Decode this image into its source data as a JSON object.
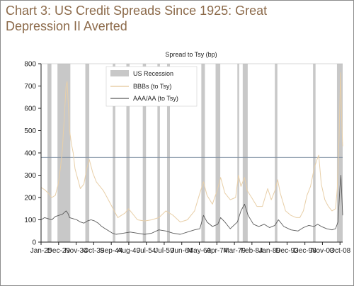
{
  "chart_data": {
    "type": "line",
    "title": "Chart 3: US Credit Spreads Since 1925: Great Depression II Averted",
    "ylabel": "Spread to Tsy (bp)",
    "xlabel": "",
    "ylim": [
      0,
      800
    ],
    "yticks": [
      0,
      100,
      200,
      300,
      400,
      500,
      600,
      700,
      800
    ],
    "xlim": [
      1925.0,
      2009.5
    ],
    "xtick_labels": [
      "Jan-25",
      "Dec-29",
      "Nov-34",
      "Oct-39",
      "Sep-44",
      "Aug-49",
      "Jul-54",
      "Jul-59",
      "Jun-64",
      "May-69",
      "Apr-74",
      "Mar-79",
      "Feb-84",
      "Jan-89",
      "Dec-93",
      "Dec-98",
      "Nov-03",
      "Oct-08"
    ],
    "xtick_values": [
      1925.0,
      1929.92,
      1934.83,
      1939.75,
      1944.67,
      1949.58,
      1954.5,
      1959.5,
      1964.42,
      1969.33,
      1974.25,
      1979.17,
      1984.08,
      1989.0,
      1993.92,
      1998.92,
      2003.83,
      2008.75
    ],
    "reference_line": 380,
    "grid": false,
    "legend_position": "top-left",
    "recessions": [
      [
        1926.8,
        1927.9
      ],
      [
        1929.6,
        1933.2
      ],
      [
        1937.4,
        1938.5
      ],
      [
        1945.1,
        1945.8
      ],
      [
        1948.9,
        1949.8
      ],
      [
        1953.5,
        1954.4
      ],
      [
        1957.6,
        1958.3
      ],
      [
        1960.3,
        1961.1
      ],
      [
        1969.9,
        1970.9
      ],
      [
        1973.9,
        1975.2
      ],
      [
        1980.0,
        1980.5
      ],
      [
        1981.5,
        1982.9
      ],
      [
        1990.5,
        1991.2
      ],
      [
        2001.2,
        2001.9
      ],
      [
        2007.9,
        2009.5
      ]
    ],
    "series": [
      {
        "name": "US Recession",
        "color": "#c8c8c8"
      },
      {
        "name": "BBBs (to Tsy)",
        "color": "#e8cfa8",
        "x": [
          1925.0,
          1926.0,
          1927.0,
          1928.0,
          1929.0,
          1929.8,
          1930.5,
          1931.0,
          1931.5,
          1932.0,
          1932.3,
          1932.6,
          1933.0,
          1933.5,
          1934.0,
          1934.5,
          1935.0,
          1936.0,
          1937.0,
          1937.8,
          1938.5,
          1939.5,
          1940.5,
          1941.5,
          1942.5,
          1943.5,
          1944.5,
          1945.5,
          1946.5,
          1947.5,
          1948.5,
          1949.5,
          1950.5,
          1952.0,
          1954.0,
          1956.0,
          1958.0,
          1960.0,
          1962.0,
          1964.0,
          1966.0,
          1968.0,
          1969.5,
          1970.5,
          1971.5,
          1973.0,
          1974.5,
          1975.3,
          1976.5,
          1978.0,
          1979.5,
          1980.3,
          1981.0,
          1982.0,
          1982.8,
          1984.0,
          1985.5,
          1987.0,
          1988.5,
          1989.5,
          1990.5,
          1991.3,
          1992.0,
          1993.5,
          1995.0,
          1996.5,
          1997.5,
          1998.5,
          1999.5,
          2000.5,
          2001.5,
          2002.3,
          2002.8,
          2003.5,
          2004.5,
          2005.5,
          2006.5,
          2007.5,
          2008.0,
          2008.5,
          2008.9,
          2009.2,
          2009.5
        ],
        "values": [
          245,
          235,
          220,
          200,
          210,
          260,
          340,
          420,
          560,
          700,
          720,
          630,
          500,
          440,
          400,
          330,
          300,
          240,
          260,
          330,
          370,
          310,
          270,
          250,
          230,
          200,
          170,
          140,
          110,
          120,
          130,
          150,
          130,
          100,
          95,
          100,
          110,
          140,
          120,
          90,
          100,
          140,
          220,
          270,
          210,
          170,
          240,
          290,
          220,
          190,
          200,
          300,
          250,
          290,
          230,
          200,
          160,
          160,
          240,
          190,
          230,
          280,
          220,
          140,
          120,
          110,
          110,
          140,
          210,
          250,
          330,
          370,
          390,
          260,
          190,
          160,
          140,
          150,
          240,
          480,
          760,
          560,
          430
        ]
      },
      {
        "name": "AAA/AA (to Tsy)",
        "color": "#5a5a5a",
        "x": [
          1925.0,
          1926.0,
          1927.0,
          1928.0,
          1929.0,
          1930.0,
          1931.0,
          1932.0,
          1932.5,
          1933.0,
          1934.0,
          1935.0,
          1936.0,
          1937.0,
          1938.0,
          1939.0,
          1940.0,
          1941.0,
          1942.0,
          1943.0,
          1944.0,
          1945.0,
          1946.0,
          1948.0,
          1950.0,
          1952.0,
          1954.0,
          1956.0,
          1958.0,
          1960.0,
          1962.0,
          1964.0,
          1966.0,
          1968.0,
          1969.5,
          1970.5,
          1971.5,
          1973.0,
          1974.5,
          1975.3,
          1976.5,
          1978.0,
          1980.0,
          1981.0,
          1982.0,
          1983.0,
          1984.5,
          1986.0,
          1987.5,
          1989.0,
          1990.5,
          1991.5,
          1993.0,
          1995.0,
          1997.0,
          1998.5,
          2000.0,
          2001.5,
          2002.5,
          2003.5,
          2005.0,
          2006.5,
          2007.5,
          2008.2,
          2008.7,
          2009.0,
          2009.5
        ],
        "values": [
          100,
          110,
          105,
          100,
          115,
          120,
          125,
          140,
          130,
          110,
          105,
          100,
          90,
          85,
          95,
          100,
          95,
          85,
          70,
          60,
          50,
          40,
          35,
          40,
          45,
          40,
          35,
          40,
          55,
          50,
          40,
          35,
          45,
          55,
          60,
          120,
          90,
          70,
          80,
          110,
          90,
          60,
          90,
          140,
          170,
          120,
          80,
          70,
          80,
          65,
          75,
          100,
          70,
          55,
          50,
          65,
          75,
          70,
          80,
          70,
          60,
          55,
          60,
          90,
          240,
          300,
          120
        ]
      }
    ]
  }
}
